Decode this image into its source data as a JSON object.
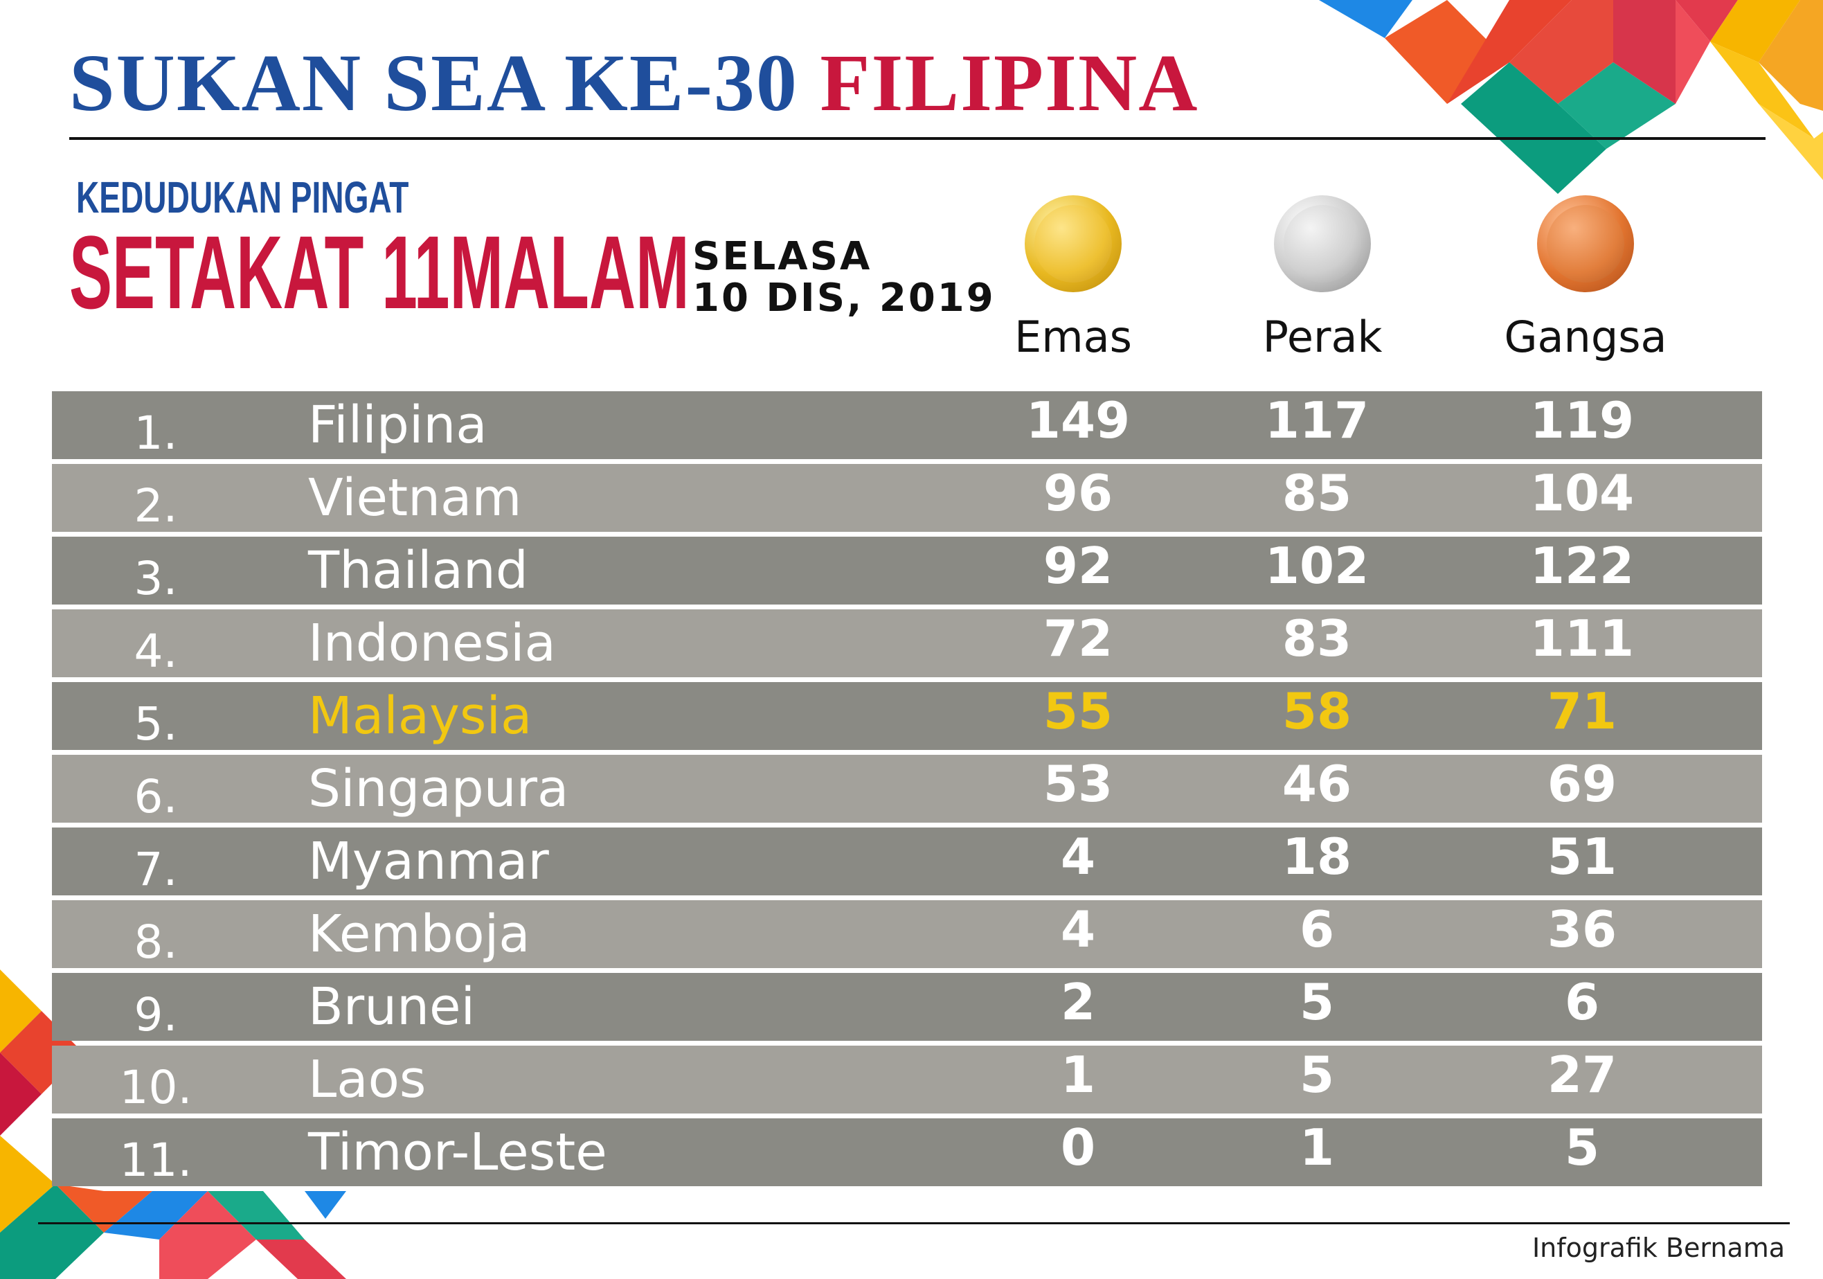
{
  "header": {
    "title_part1": "SUKAN SEA KE-30",
    "title_part2": "FILIPINA",
    "subtitle_small": "KEDUDUKAN PINGAT",
    "subtitle_large": "SETAKAT 11MALAM",
    "date_line1": "SELASA",
    "date_line2": "10 DIS, 2019"
  },
  "medals": {
    "gold_label": "Emas",
    "silver_label": "Perak",
    "bronze_label": "Gangsa"
  },
  "colors": {
    "title_blue": "#1f4e9c",
    "title_red": "#c8173d",
    "highlight": "#f2c811",
    "row_dark": "#8a8a84",
    "row_light": "#a3a19b"
  },
  "table": {
    "rows": [
      {
        "rank": "1.",
        "country": "Filipina",
        "gold": "149",
        "silver": "117",
        "bronze": "119"
      },
      {
        "rank": "2.",
        "country": "Vietnam",
        "gold": "96",
        "silver": "85",
        "bronze": "104"
      },
      {
        "rank": "3.",
        "country": "Thailand",
        "gold": "92",
        "silver": "102",
        "bronze": "122"
      },
      {
        "rank": "4.",
        "country": "Indonesia",
        "gold": "72",
        "silver": "83",
        "bronze": "111"
      },
      {
        "rank": "5.",
        "country": "Malaysia",
        "gold": "55",
        "silver": "58",
        "bronze": "71"
      },
      {
        "rank": "6.",
        "country": "Singapura",
        "gold": "53",
        "silver": "46",
        "bronze": "69"
      },
      {
        "rank": "7.",
        "country": "Myanmar",
        "gold": "4",
        "silver": "18",
        "bronze": "51"
      },
      {
        "rank": "8.",
        "country": "Kemboja",
        "gold": "4",
        "silver": "6",
        "bronze": "36"
      },
      {
        "rank": "9.",
        "country": "Brunei",
        "gold": "2",
        "silver": "5",
        "bronze": "6"
      },
      {
        "rank": "10.",
        "country": "Laos",
        "gold": "1",
        "silver": "5",
        "bronze": "27"
      },
      {
        "rank": "11.",
        "country": "Timor-Leste",
        "gold": "0",
        "silver": "1",
        "bronze": "5"
      }
    ]
  },
  "footer": {
    "credit": "Infografik Bernama"
  }
}
